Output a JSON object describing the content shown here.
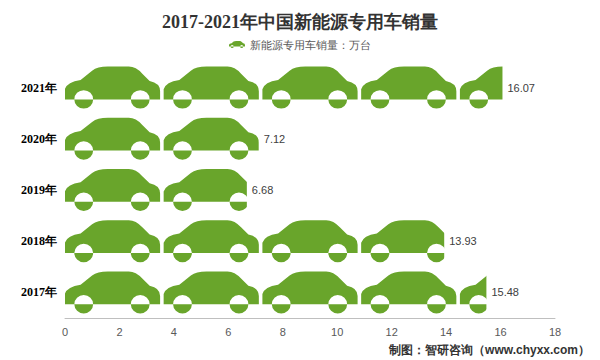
{
  "chart_data": {
    "type": "bar",
    "marker": "car",
    "title": "2017-2021年中国新能源专用车销量",
    "source": "制图：智研咨询（www.chyxx.com）",
    "categories": [
      "2017年",
      "2018年",
      "2019年",
      "2020年",
      "2021年"
    ],
    "series": [
      {
        "name": "新能源专用车销量：万台",
        "color": "#69a52b",
        "values": [
          15.48,
          13.93,
          6.68,
          7.12,
          16.07
        ]
      }
    ],
    "orientation": "horizontal",
    "xlim": [
      0,
      18
    ],
    "xticks": [
      0,
      2,
      4,
      6,
      8,
      10,
      12,
      14,
      16,
      18
    ],
    "grid": false,
    "data_labels": true,
    "legend": "top"
  }
}
